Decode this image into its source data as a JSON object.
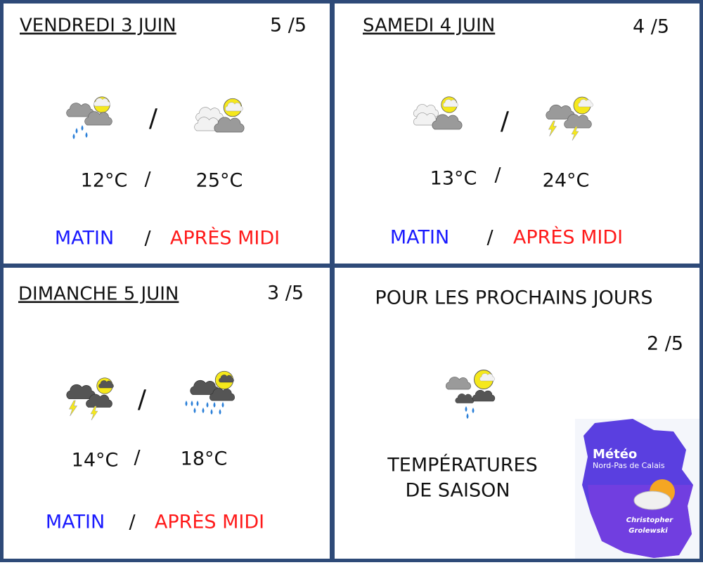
{
  "days": [
    {
      "title": "VENDREDI 3 JUIN",
      "rating": "5 /5",
      "morning_temp": "12°C",
      "afternoon_temp": "25°C",
      "morning_label": "MATIN",
      "afternoon_label": "APRÈS MIDI"
    },
    {
      "title": "SAMEDI 4 JUIN",
      "rating": "4 /5",
      "morning_temp": "13°C",
      "afternoon_temp": "24°C",
      "morning_label": "MATIN",
      "afternoon_label": "APRÈS MIDI"
    },
    {
      "title": "DIMANCHE 5 JUIN",
      "rating": "3 /5",
      "morning_temp": "14°C",
      "afternoon_temp": "18°C",
      "morning_label": "MATIN",
      "afternoon_label": "APRÈS MIDI"
    }
  ],
  "separator": "/",
  "outlook": {
    "title": "POUR LES PROCHAINS JOURS",
    "rating": "2 /5",
    "text": [
      "TEMPÉRATURES",
      "DE SAISON"
    ]
  },
  "logo": {
    "title": "Météo",
    "subtitle": "Nord-Pas de Calais",
    "author": [
      "Christopher",
      "Grolewski"
    ]
  }
}
